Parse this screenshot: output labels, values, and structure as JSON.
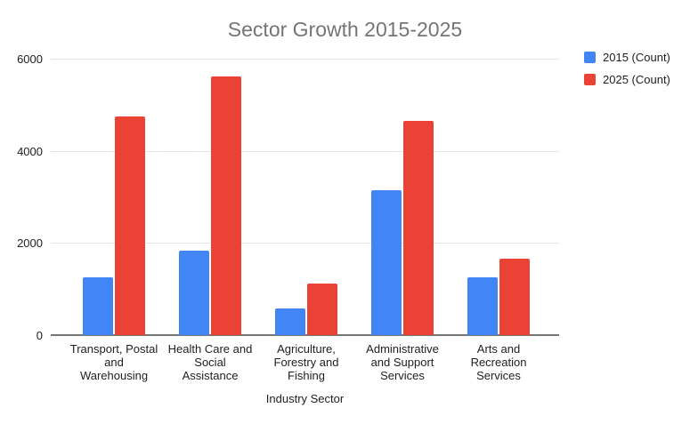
{
  "chart_data": {
    "type": "bar",
    "title": "Sector Growth 2015-2025",
    "xlabel": "Industry Sector",
    "ylabel": "",
    "categories": [
      "Transport, Postal and Warehousing",
      "Health Care and Social Assistance",
      "Agriculture, Forestry and Fishing",
      "Administrative and Support Services",
      "Arts and Recreation Services"
    ],
    "category_label_lines": [
      [
        "Transport, Postal",
        "and",
        "Warehousing"
      ],
      [
        "Health Care and",
        "Social",
        "Assistance"
      ],
      [
        "Agriculture,",
        "Forestry and",
        "Fishing"
      ],
      [
        "Administrative",
        "and Support",
        "Services"
      ],
      [
        "Arts and",
        "Recreation",
        "Services"
      ]
    ],
    "series": [
      {
        "name": "2015 (Count)",
        "color": "#4285F4",
        "values": [
          1260,
          1830,
          570,
          3150,
          1260
        ]
      },
      {
        "name": "2025 (Count)",
        "color": "#EA4335",
        "values": [
          4750,
          5610,
          1120,
          4650,
          1650
        ]
      }
    ],
    "ylim": [
      0,
      6000
    ],
    "yticks": [
      0,
      2000,
      4000,
      6000
    ],
    "grid": true,
    "legend_position": "top-right",
    "colors": {
      "background": "#ffffff",
      "title_text": "#757575",
      "axis_text": "#212121",
      "gridline": "#e6e6e6",
      "axis_line": "#757575"
    }
  }
}
